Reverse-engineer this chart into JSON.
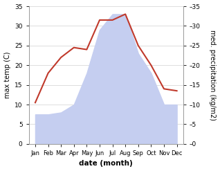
{
  "months": [
    "Jan",
    "Feb",
    "Mar",
    "Apr",
    "May",
    "Jun",
    "Jul",
    "Aug",
    "Sep",
    "Oct",
    "Nov",
    "Dec"
  ],
  "temperature": [
    10.5,
    18.0,
    22.0,
    24.5,
    24.0,
    31.5,
    31.5,
    33.0,
    25.0,
    20.0,
    14.0,
    13.5
  ],
  "precipitation": [
    7.5,
    7.5,
    8.0,
    10.0,
    18.0,
    29.0,
    33.0,
    33.0,
    23.0,
    18.0,
    10.0,
    10.0
  ],
  "temp_color": "#c0392b",
  "precip_fill_color": "#c5cef0",
  "ylim": [
    0,
    35
  ],
  "yticks": [
    0,
    5,
    10,
    15,
    20,
    25,
    30,
    35
  ],
  "ylabel_left": "max temp (C)",
  "ylabel_right": "med. precipitation (kg/m2)",
  "xlabel": "date (month)",
  "bg_color": "#ffffff",
  "grid_color": "#d0d0d0"
}
